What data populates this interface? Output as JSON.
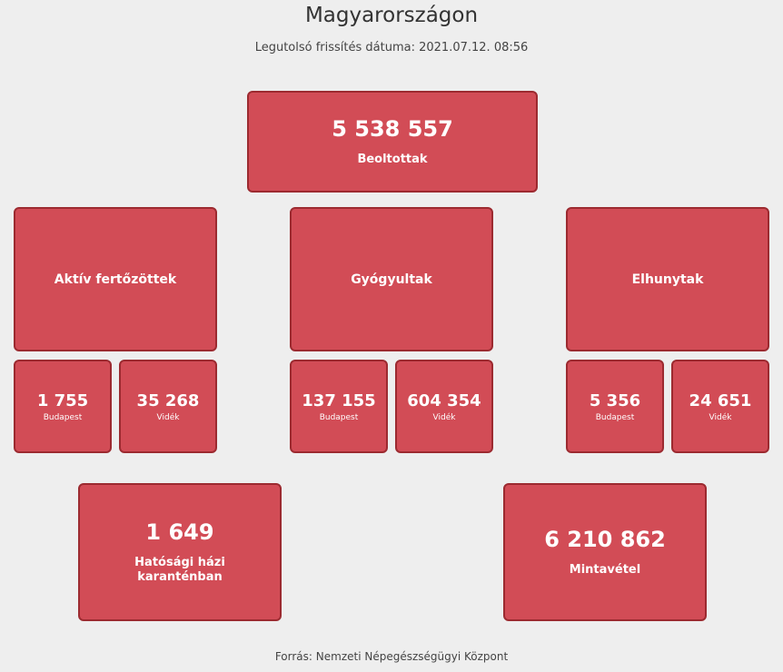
{
  "header": {
    "title": "Magyarországon",
    "updated": "Legutolsó frissítés dátuma: 2021.07.12. 08:56"
  },
  "vaccinated": {
    "value": "5 538 557",
    "label": "Beoltottak"
  },
  "groups": [
    {
      "label": "Aktív fertőzöttek",
      "budapest": {
        "value": "1 755",
        "label": "Budapest"
      },
      "rural": {
        "value": "35 268",
        "label": "Vidék"
      }
    },
    {
      "label": "Gyógyultak",
      "budapest": {
        "value": "137 155",
        "label": "Budapest"
      },
      "rural": {
        "value": "604 354",
        "label": "Vidék"
      }
    },
    {
      "label": "Elhunytak",
      "budapest": {
        "value": "5 356",
        "label": "Budapest"
      },
      "rural": {
        "value": "24 651",
        "label": "Vidék"
      }
    }
  ],
  "quarantine": {
    "value": "1 649",
    "label": "Hatósági házi karanténban"
  },
  "samples": {
    "value": "6 210 862",
    "label": "Mintavétel"
  },
  "footer": {
    "source": "Forrás: Nemzeti Népegészségügyi Központ"
  },
  "colors": {
    "card_bg": "#d24c56",
    "card_border": "#9c2a30",
    "page_bg": "#eeeeee"
  }
}
